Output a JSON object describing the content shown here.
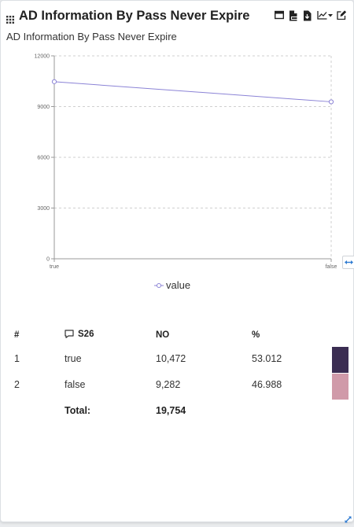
{
  "header": {
    "title": "AD Information By Pass Never Expire",
    "menu_icon": "grid-icon",
    "toolbar_icons": [
      "window-icon",
      "csv-file-icon",
      "download-file-icon",
      "line-chart-icon",
      "caret-down-icon",
      "edit-icon"
    ]
  },
  "chart_data": {
    "type": "line",
    "title": "AD Information By Pass Never Expire",
    "xlabel": "",
    "ylabel": "",
    "categories": [
      "true",
      "false"
    ],
    "series": [
      {
        "name": "value",
        "values": [
          10472,
          9282
        ],
        "color": "#8b83d6"
      }
    ],
    "ylim": [
      0,
      12000
    ],
    "yticks": [
      0,
      3000,
      6000,
      9000,
      12000
    ],
    "grid": true,
    "legend_position": "bottom"
  },
  "table": {
    "headers": {
      "index": "#",
      "field": "S26",
      "count": "NO",
      "percent": "%"
    },
    "rows": [
      {
        "index": "1",
        "label": "true",
        "count": "10,472",
        "percent": "53.012",
        "swatch": "#3b2d52"
      },
      {
        "index": "2",
        "label": "false",
        "count": "9,282",
        "percent": "46.988",
        "swatch": "#d09aa9"
      }
    ],
    "total_label": "Total:",
    "total_value": "19,754"
  },
  "colors": {
    "accent": "#2f7bd1",
    "line": "#8b83d6"
  }
}
